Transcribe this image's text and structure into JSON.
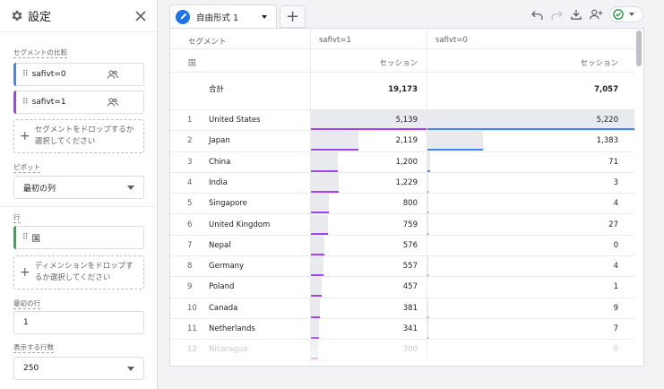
{
  "panel": {
    "title": "設定",
    "segment_label": "セグメントの比較",
    "segments": [
      {
        "label": "safivt=0",
        "color": "#4285f4"
      },
      {
        "label": "safivt=1",
        "color": "#a142f4"
      }
    ],
    "segment_drop": "セグメントをドロップするか選択してください",
    "pivot_label": "ピボット",
    "pivot_value": "最初の列",
    "rows_label": "行",
    "row_dimension": "国",
    "row_dimension_color": "#34a853",
    "dimension_drop": "ディメンションをドロップするか選択してください",
    "first_row_label": "最初の行",
    "first_row_value": "1",
    "rows_shown_label": "表示する行数",
    "rows_shown_value": "250"
  },
  "tab": {
    "label": "自由形式 1"
  },
  "table": {
    "col_segment": "セグメント",
    "col_dim": "国",
    "col_a": "safivt=1",
    "col_b": "safivt=0",
    "metric_a": "セッション",
    "metric_b": "セッション",
    "total_label": "合計",
    "total_a": "19,173",
    "total_b": "7,057",
    "rows": [
      {
        "idx": "1",
        "country": "United States",
        "a": "5,139",
        "b": "5,220"
      },
      {
        "idx": "2",
        "country": "Japan",
        "a": "2,119",
        "b": "1,383"
      },
      {
        "idx": "3",
        "country": "China",
        "a": "1,200",
        "b": "71"
      },
      {
        "idx": "4",
        "country": "India",
        "a": "1,229",
        "b": "3"
      },
      {
        "idx": "5",
        "country": "Singapore",
        "a": "800",
        "b": "4"
      },
      {
        "idx": "6",
        "country": "United Kingdom",
        "a": "759",
        "b": "27"
      },
      {
        "idx": "7",
        "country": "Nepal",
        "a": "576",
        "b": "0"
      },
      {
        "idx": "8",
        "country": "Germany",
        "a": "557",
        "b": "4"
      },
      {
        "idx": "9",
        "country": "Poland",
        "a": "457",
        "b": "1"
      },
      {
        "idx": "10",
        "country": "Canada",
        "a": "381",
        "b": "9"
      },
      {
        "idx": "11",
        "country": "Netherlands",
        "a": "341",
        "b": "7"
      },
      {
        "idx": "12",
        "country": "Nicaragua",
        "a": "300",
        "b": "0"
      }
    ]
  },
  "colors": {
    "segment_a": "#a142f4",
    "segment_b": "#4285f4",
    "accent": "#1a73e8",
    "status_ok": "#1e8e3e"
  },
  "icons": [
    "gear-icon",
    "close-icon",
    "drag-handle-icon",
    "people-icon",
    "plus-icon",
    "pencil-icon",
    "undo-icon",
    "redo-icon",
    "download-icon",
    "share-user-icon",
    "check-circle-icon"
  ]
}
